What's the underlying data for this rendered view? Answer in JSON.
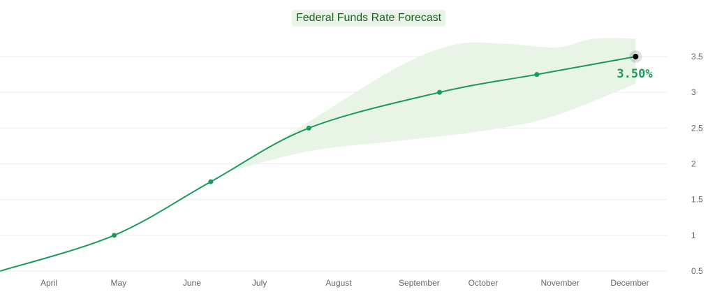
{
  "chart_data": {
    "type": "line",
    "title": "Federal Funds Rate Forecast",
    "xlabel": "",
    "ylabel": "",
    "ylim": [
      0.5,
      3.5
    ],
    "yticks": [
      "0.5",
      "1",
      "1.5",
      "2",
      "2.5",
      "3",
      "3.5"
    ],
    "xticks": [
      {
        "label": "April",
        "v": 0
      },
      {
        "label": "May",
        "v": 0.96
      },
      {
        "label": "June",
        "v": 1.97
      },
      {
        "label": "July",
        "v": 2.9
      },
      {
        "label": "August",
        "v": 3.99
      },
      {
        "label": "September",
        "v": 5.1
      },
      {
        "label": "October",
        "v": 5.98
      },
      {
        "label": "November",
        "v": 7.04
      },
      {
        "label": "December",
        "v": 8.0
      }
    ],
    "grid": true,
    "series": [
      {
        "name": "Forecast",
        "color": "#1a9a5c",
        "points": [
          [
            -0.67,
            0.5
          ],
          [
            0.9,
            1.0
          ],
          [
            2.23,
            1.75
          ],
          [
            3.58,
            2.5
          ],
          [
            5.38,
            3.0
          ],
          [
            6.72,
            3.25
          ],
          [
            8.08,
            3.5
          ]
        ],
        "marked": [
          1,
          2,
          3,
          4,
          5,
          6
        ]
      }
    ],
    "band": {
      "color": "#e8f5e6",
      "upper": [
        [
          2.5,
          1.9
        ],
        [
          3.6,
          2.6
        ],
        [
          4.8,
          3.35
        ],
        [
          5.6,
          3.67
        ],
        [
          6.3,
          3.68
        ],
        [
          7.0,
          3.63
        ],
        [
          7.5,
          3.75
        ],
        [
          8.08,
          3.75
        ]
      ],
      "lower": [
        [
          2.5,
          1.9
        ],
        [
          3.6,
          2.18
        ],
        [
          4.8,
          2.32
        ],
        [
          5.9,
          2.45
        ],
        [
          6.9,
          2.65
        ],
        [
          8.08,
          3.12
        ]
      ]
    },
    "annotation": {
      "label": "3.50%",
      "value": 3.5
    }
  }
}
